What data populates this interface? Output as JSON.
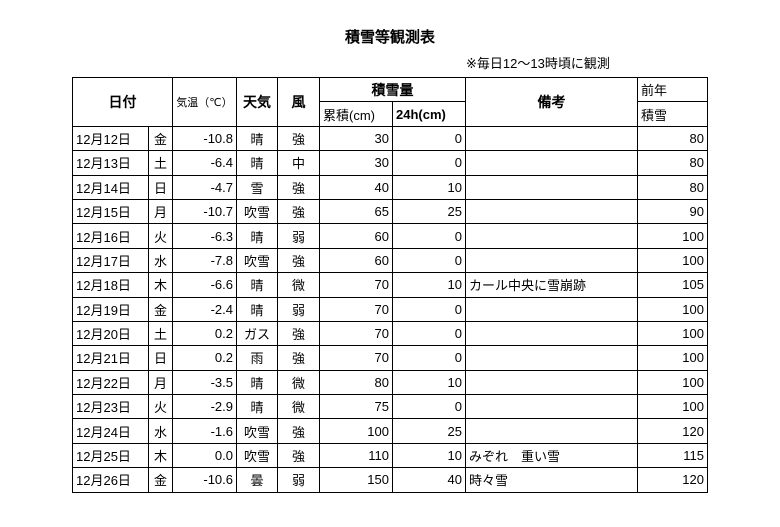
{
  "title": "積雪等観測表",
  "note": "※毎日12～13時頃に観測",
  "headers": {
    "date": "日付",
    "temp": "気温（℃）",
    "weather": "天気",
    "wind": "風",
    "snow": "積雪量",
    "cumulative": "累積(cm)",
    "h24": "24h(cm)",
    "remarks": "備考",
    "prev1": "前年",
    "prev2": "積雪"
  },
  "rows": [
    {
      "date": "12月12日",
      "day": "金",
      "temp": "-10.8",
      "weather": "晴",
      "wind": "強",
      "cum": "30",
      "h24": "0",
      "remarks": "",
      "prev": "80"
    },
    {
      "date": "12月13日",
      "day": "土",
      "temp": "-6.4",
      "weather": "晴",
      "wind": "中",
      "cum": "30",
      "h24": "0",
      "remarks": "",
      "prev": "80"
    },
    {
      "date": "12月14日",
      "day": "日",
      "temp": "-4.7",
      "weather": "雪",
      "wind": "強",
      "cum": "40",
      "h24": "10",
      "remarks": "",
      "prev": "80"
    },
    {
      "date": "12月15日",
      "day": "月",
      "temp": "-10.7",
      "weather": "吹雪",
      "wind": "強",
      "cum": "65",
      "h24": "25",
      "remarks": "",
      "prev": "90"
    },
    {
      "date": "12月16日",
      "day": "火",
      "temp": "-6.3",
      "weather": "晴",
      "wind": "弱",
      "cum": "60",
      "h24": "0",
      "remarks": "",
      "prev": "100"
    },
    {
      "date": "12月17日",
      "day": "水",
      "temp": "-7.8",
      "weather": "吹雪",
      "wind": "強",
      "cum": "60",
      "h24": "0",
      "remarks": "",
      "prev": "100"
    },
    {
      "date": "12月18日",
      "day": "木",
      "temp": "-6.6",
      "weather": "晴",
      "wind": "微",
      "cum": "70",
      "h24": "10",
      "remarks": "カール中央に雪崩跡",
      "prev": "105"
    },
    {
      "date": "12月19日",
      "day": "金",
      "temp": "-2.4",
      "weather": "晴",
      "wind": "弱",
      "cum": "70",
      "h24": "0",
      "remarks": "",
      "prev": "100"
    },
    {
      "date": "12月20日",
      "day": "土",
      "temp": "0.2",
      "weather": "ガス",
      "wind": "強",
      "cum": "70",
      "h24": "0",
      "remarks": "",
      "prev": "100"
    },
    {
      "date": "12月21日",
      "day": "日",
      "temp": "0.2",
      "weather": "雨",
      "wind": "強",
      "cum": "70",
      "h24": "0",
      "remarks": "",
      "prev": "100"
    },
    {
      "date": "12月22日",
      "day": "月",
      "temp": "-3.5",
      "weather": "晴",
      "wind": "微",
      "cum": "80",
      "h24": "10",
      "remarks": "",
      "prev": "100"
    },
    {
      "date": "12月23日",
      "day": "火",
      "temp": "-2.9",
      "weather": "晴",
      "wind": "微",
      "cum": "75",
      "h24": "0",
      "remarks": "",
      "prev": "100"
    },
    {
      "date": "12月24日",
      "day": "水",
      "temp": "-1.6",
      "weather": "吹雪",
      "wind": "強",
      "cum": "100",
      "h24": "25",
      "remarks": "",
      "prev": "120"
    },
    {
      "date": "12月25日",
      "day": "木",
      "temp": "0.0",
      "weather": "吹雪",
      "wind": "強",
      "cum": "110",
      "h24": "10",
      "remarks": "みぞれ　重い雪",
      "prev": "115"
    },
    {
      "date": "12月26日",
      "day": "金",
      "temp": "-10.6",
      "weather": "曇",
      "wind": "弱",
      "cum": "150",
      "h24": "40",
      "remarks": "時々雪",
      "prev": "120"
    }
  ]
}
